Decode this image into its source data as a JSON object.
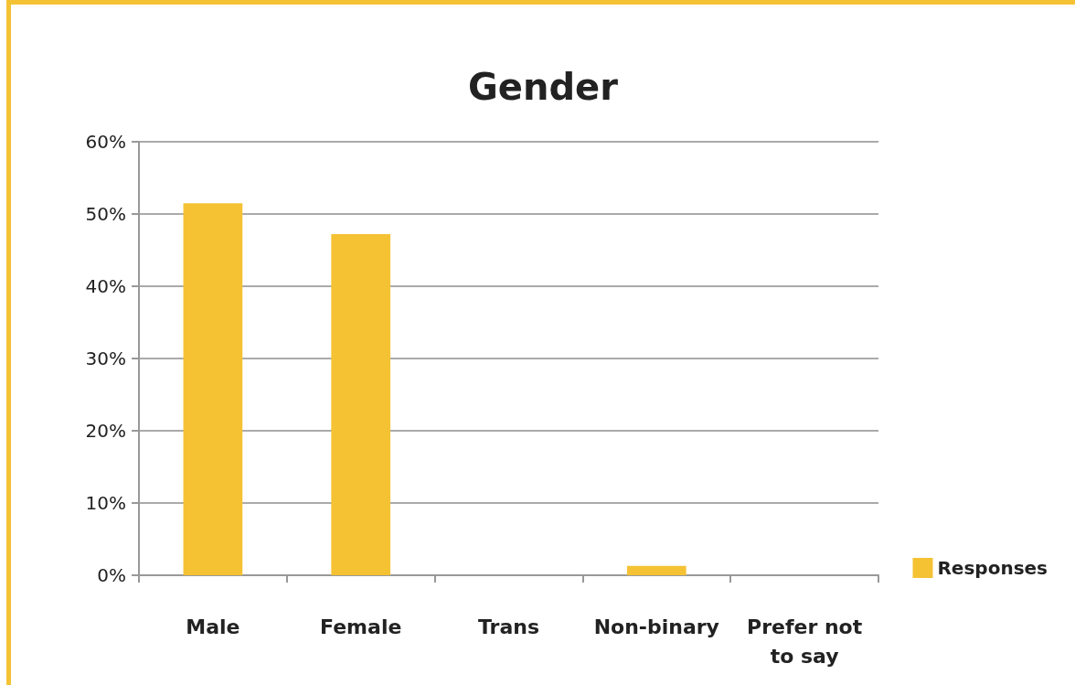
{
  "chart_data": {
    "type": "bar",
    "title": "Gender",
    "categories": [
      "Male",
      "Female",
      "Trans",
      "Non-binary",
      "Prefer not\nto say"
    ],
    "series": [
      {
        "name": "Responses",
        "color": "#f5c234",
        "values": [
          51.5,
          47.2,
          0,
          1.3,
          0
        ]
      }
    ],
    "ylim": [
      0,
      60
    ],
    "yticks": [
      {
        "value": 0,
        "label": "0%"
      },
      {
        "value": 10,
        "label": "10%"
      },
      {
        "value": 20,
        "label": "20%"
      },
      {
        "value": 30,
        "label": "30%"
      },
      {
        "value": 40,
        "label": "40%"
      },
      {
        "value": 50,
        "label": "50%"
      },
      {
        "value": 60,
        "label": "60%"
      }
    ],
    "grid": "y",
    "legend": "right"
  }
}
